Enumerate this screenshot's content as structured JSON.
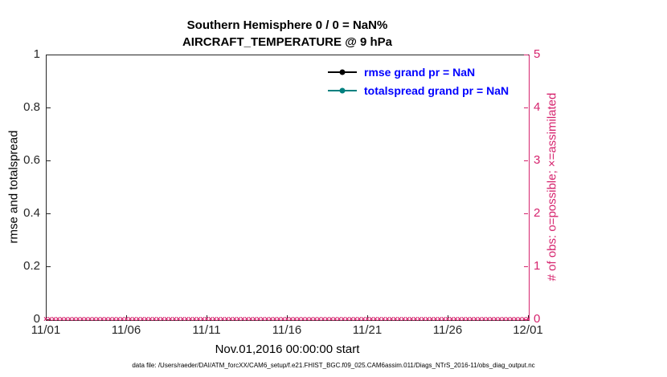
{
  "chart_data": {
    "type": "line",
    "title": "Southern Hemisphere 0 / 0 = NaN%",
    "subtitle": "AIRCRAFT_TEMPERATURE @ 9 hPa",
    "xlabel": "Nov.01,2016 00:00:00 start",
    "ylabel_left": "rmse and totalspread",
    "ylabel_right": "# of obs: o=possible; ×=assimilated",
    "x_ticks": [
      "11/01",
      "11/06",
      "11/11",
      "11/16",
      "11/21",
      "11/26",
      "12/01"
    ],
    "y_ticks_left": [
      "0",
      "0.2",
      "0.4",
      "0.6",
      "0.8",
      "1"
    ],
    "y_ticks_right": [
      "0",
      "1",
      "2",
      "3",
      "4",
      "5"
    ],
    "ylim_left": [
      0,
      1
    ],
    "ylim_right": [
      0,
      5
    ],
    "grid": false,
    "legend_position": "top-right-inside",
    "legend_text_color": "#0000ff",
    "axis_color": "#262626",
    "right_axis_color": "#d6246e",
    "legend": [
      {
        "name": "rmse",
        "label": "rmse grand pr = NaN",
        "marker_color": "#000000"
      },
      {
        "name": "totalspread",
        "label": "totalspread grand pr = NaN",
        "marker_color": "#00807f"
      }
    ],
    "series": [
      {
        "name": "rmse",
        "values": "NaN"
      },
      {
        "name": "totalspread",
        "values": "NaN"
      },
      {
        "name": "obs_assimilated",
        "marker": "x",
        "y_value": 0,
        "count": 121,
        "color": "#d6246e"
      }
    ],
    "caption": "data file: /Users/raeder/DAI/ATM_forcXX/CAM6_setup/f.e21.FHIST_BGC.f09_025.CAM6assim.011/Diags_NTrS_2016-11/obs_diag_output.nc"
  }
}
